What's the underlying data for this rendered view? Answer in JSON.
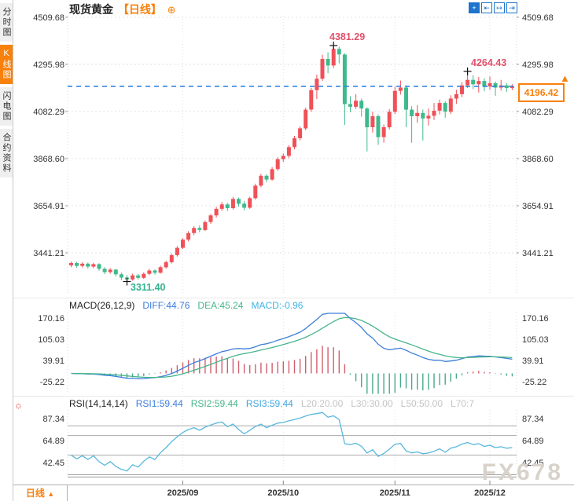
{
  "sidebar": {
    "tabs": [
      {
        "label": "分时图",
        "active": false
      },
      {
        "label": "K线图",
        "active": true
      },
      {
        "label": "闪电图",
        "active": false
      },
      {
        "label": "合约资料",
        "active": false
      }
    ]
  },
  "header": {
    "symbol": "现货黄金",
    "period_tag": "【日线】",
    "add_glyph": "⊕"
  },
  "toolbar": {
    "items": [
      {
        "name": "pan-icon",
        "glyph": "+"
      },
      {
        "name": "shift-left-icon",
        "glyph": "⇤"
      },
      {
        "name": "shift-right-icon",
        "glyph": "↦"
      },
      {
        "name": "go-to-latest-icon",
        "glyph": "⇥"
      }
    ]
  },
  "macd_header": {
    "title": "MACD(26,12,9)",
    "diff": "DIFF:44.76",
    "dea": "DEA:45.24",
    "macd": "MACD:-0.96"
  },
  "rsi_header": {
    "title": "RSI(14,14,14)",
    "rsi1": "RSI1:59.44",
    "rsi2": "RSI2:59.44",
    "rsi3": "RSI3:59.44",
    "l20": "L20:20.00",
    "l30": "L30:30.00",
    "l50": "L50:50.00",
    "l70": "L70:7"
  },
  "price_marker": {
    "value": "4196.42",
    "arrow": "▲"
  },
  "bottom": {
    "period_label": "日线",
    "arrow": "▲"
  },
  "watermark": "FX678",
  "alert_glyph": "☼",
  "chart_data": {
    "type": "candlestick",
    "title": "现货黄金 日线",
    "last_price": 4196.42,
    "price_axis": {
      "values": [
        4509.68,
        4295.98,
        4082.29,
        3868.6,
        3654.91,
        3441.21
      ]
    },
    "months": {
      "labels": [
        "2025/09",
        "2025/10",
        "2025/11",
        "2025/12"
      ],
      "candle_index": [
        20,
        38,
        58,
        75
      ]
    },
    "annotations": [
      {
        "kind": "swing-high",
        "index": 47,
        "price": 4381.29,
        "label": "4381.29"
      },
      {
        "kind": "swing-low",
        "index": 10,
        "price": 3311.4,
        "label": "3311.40"
      },
      {
        "kind": "swing-high",
        "index": 71,
        "price": 4264.43,
        "label": "4264.43"
      }
    ],
    "candles_ohlc": [
      [
        3385,
        3402,
        3376,
        3395
      ],
      [
        3395,
        3401,
        3374,
        3382
      ],
      [
        3382,
        3398,
        3375,
        3392
      ],
      [
        3392,
        3397,
        3371,
        3379
      ],
      [
        3379,
        3396,
        3372,
        3390
      ],
      [
        3390,
        3394,
        3360,
        3369
      ],
      [
        3369,
        3376,
        3345,
        3354
      ],
      [
        3354,
        3372,
        3347,
        3365
      ],
      [
        3365,
        3369,
        3334,
        3344
      ],
      [
        3344,
        3351,
        3317,
        3329
      ],
      [
        3329,
        3340,
        3311.4,
        3321
      ],
      [
        3321,
        3347,
        3315,
        3339
      ],
      [
        3339,
        3345,
        3321,
        3328
      ],
      [
        3328,
        3353,
        3323,
        3346
      ],
      [
        3346,
        3369,
        3340,
        3361
      ],
      [
        3361,
        3366,
        3343,
        3351
      ],
      [
        3351,
        3383,
        3347,
        3376
      ],
      [
        3376,
        3406,
        3370,
        3399
      ],
      [
        3399,
        3438,
        3393,
        3431
      ],
      [
        3431,
        3472,
        3425,
        3464
      ],
      [
        3464,
        3508,
        3458,
        3501
      ],
      [
        3501,
        3540,
        3493,
        3531
      ],
      [
        3531,
        3562,
        3521,
        3554
      ],
      [
        3554,
        3565,
        3534,
        3545
      ],
      [
        3545,
        3588,
        3540,
        3581
      ],
      [
        3581,
        3618,
        3573,
        3611
      ],
      [
        3611,
        3650,
        3601,
        3641
      ],
      [
        3641,
        3672,
        3631,
        3661
      ],
      [
        3661,
        3668,
        3631,
        3644
      ],
      [
        3644,
        3695,
        3638,
        3686
      ],
      [
        3686,
        3692,
        3651,
        3664
      ],
      [
        3664,
        3676,
        3634,
        3646
      ],
      [
        3646,
        3696,
        3641,
        3689
      ],
      [
        3689,
        3755,
        3683,
        3746
      ],
      [
        3746,
        3800,
        3739,
        3791
      ],
      [
        3791,
        3798,
        3761,
        3774
      ],
      [
        3774,
        3830,
        3768,
        3821
      ],
      [
        3821,
        3875,
        3813,
        3866
      ],
      [
        3866,
        3892,
        3854,
        3881
      ],
      [
        3881,
        3930,
        3871,
        3921
      ],
      [
        3921,
        3972,
        3911,
        3961
      ],
      [
        3961,
        4015,
        3951,
        4006
      ],
      [
        4006,
        4100,
        3997,
        4091
      ],
      [
        4091,
        4190,
        4081,
        4179
      ],
      [
        4179,
        4250,
        4139,
        4231
      ],
      [
        4231,
        4340,
        4221,
        4321
      ],
      [
        4321,
        4351,
        4256,
        4291
      ],
      [
        4291,
        4381.29,
        4279,
        4366
      ],
      [
        4366,
        4376,
        4301,
        4341
      ],
      [
        4341,
        4346,
        4021,
        4116
      ],
      [
        4116,
        4151,
        4079,
        4104
      ],
      [
        4104,
        4161,
        4094,
        4131
      ],
      [
        4131,
        4141,
        4059,
        4096
      ],
      [
        4096,
        4101,
        3901,
        4011
      ],
      [
        4011,
        4081,
        3987,
        4061
      ],
      [
        4061,
        4069,
        3931,
        3966
      ],
      [
        3966,
        4023,
        3941,
        4011
      ],
      [
        4011,
        4093,
        4001,
        4081
      ],
      [
        4081,
        4196,
        4071,
        4176
      ],
      [
        4176,
        4223,
        4159,
        4191
      ],
      [
        4191,
        4201,
        4011,
        4091
      ],
      [
        4091,
        4106,
        3941,
        4061
      ],
      [
        4061,
        4111,
        4031,
        4076
      ],
      [
        4076,
        4091,
        3951,
        4051
      ],
      [
        4051,
        4096,
        4019,
        4063
      ],
      [
        4063,
        4121,
        4044,
        4086
      ],
      [
        4086,
        4136,
        4069,
        4121
      ],
      [
        4121,
        4129,
        4054,
        4081
      ],
      [
        4081,
        4156,
        4071,
        4141
      ],
      [
        4141,
        4181,
        4117,
        4161
      ],
      [
        4161,
        4216,
        4147,
        4201
      ],
      [
        4201,
        4264.43,
        4189,
        4226
      ],
      [
        4226,
        4246,
        4184,
        4206
      ],
      [
        4206,
        4239,
        4169,
        4221
      ],
      [
        4221,
        4233,
        4174,
        4196
      ],
      [
        4196,
        4241,
        4181,
        4211
      ],
      [
        4211,
        4219,
        4154,
        4191
      ],
      [
        4191,
        4226,
        4177,
        4201
      ],
      [
        4201,
        4211,
        4171,
        4189
      ],
      [
        4189,
        4206,
        4179,
        4196.42
      ]
    ],
    "macd": {
      "params": [
        26,
        12,
        9
      ],
      "diff": 44.76,
      "dea": 45.24,
      "macd": -0.96,
      "axis_values": [
        170.16,
        105.03,
        39.91,
        -25.22
      ]
    },
    "rsi": {
      "params": [
        14,
        14,
        14
      ],
      "rsi1": 59.44,
      "rsi2": 59.44,
      "rsi3": 59.44,
      "axis_values": [
        87.34,
        64.89,
        42.45
      ],
      "grid_levels": [
        80,
        70,
        50,
        30
      ]
    },
    "colors": {
      "up": "#ef5158",
      "down": "#3fba8c",
      "hist_up": "#d15f6d",
      "hist_down": "#49a98c",
      "diff_line": "#3d7edb",
      "dea_line": "#46b58a",
      "rsi_line": "#5ab8dc",
      "price_line": "#2b7de0",
      "accent_orange": "#f8800d",
      "annotation_red": "#e2506a",
      "annotation_teal": "#35b18f"
    }
  }
}
